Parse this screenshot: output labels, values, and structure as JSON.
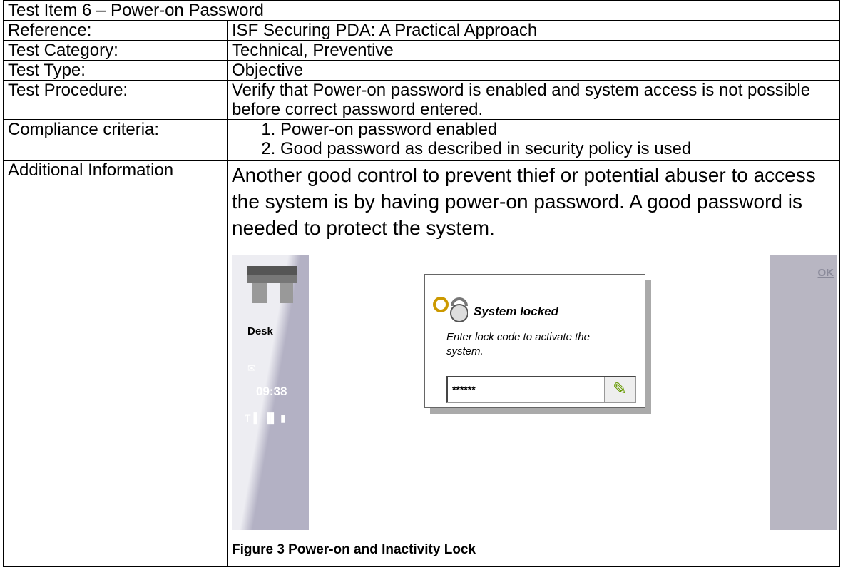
{
  "header": {
    "title": "Test Item 6  – Power-on Password"
  },
  "table": {
    "rows": [
      [
        "Reference:",
        "ISF Securing PDA: A Practical Approach"
      ],
      [
        "Test Category:",
        "Technical, Preventive"
      ],
      [
        "Test Type:",
        "Objective"
      ],
      [
        "Test Procedure:",
        "Verify that Power-on password is enabled and system access is not possible before correct password entered."
      ]
    ],
    "compliance": {
      "label": "Compliance criteria:",
      "items": [
        "Power-on password enabled",
        "Good password as described in security policy is used"
      ]
    },
    "additional": {
      "label": "Additional Information",
      "text": "Another good control to prevent thief or potential abuser to access the system is by having power-on password. A good password is needed to protect the system."
    }
  },
  "screenshot": {
    "app": "Desk",
    "time": "09:38",
    "dialog_title": "System locked",
    "dialog_text": "Enter lock code to activate the system.",
    "code": "******",
    "button": "OK"
  },
  "caption": "Figure 3 Power-on and Inactivity Lock"
}
